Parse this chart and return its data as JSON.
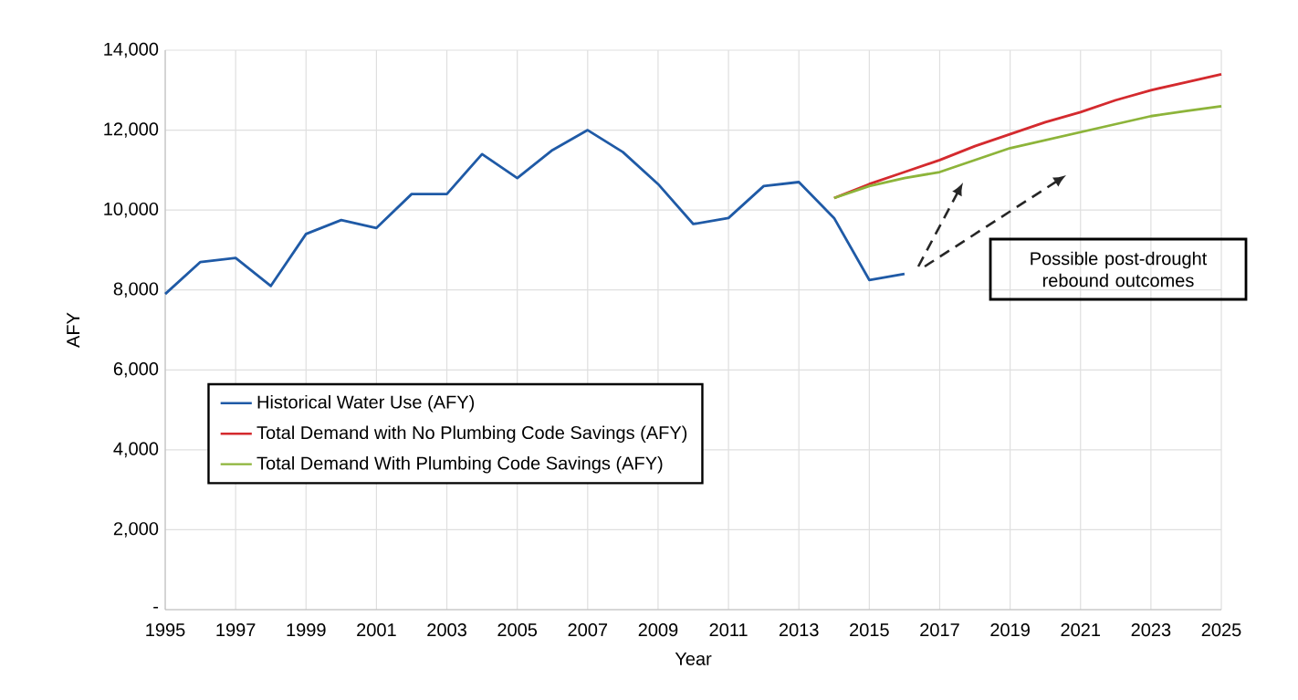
{
  "chart_data": {
    "type": "line",
    "xlabel": "Year",
    "ylabel": "AFY",
    "series": [
      {
        "name": "Historical Water Use (AFY)",
        "color": "#1f5aa6",
        "x": [
          1995,
          1996,
          1997,
          1998,
          1999,
          2000,
          2001,
          2002,
          2003,
          2004,
          2005,
          2006,
          2007,
          2008,
          2009,
          2010,
          2011,
          2012,
          2013,
          2014,
          2015,
          2016
        ],
        "values": [
          7900,
          8700,
          8800,
          8100,
          9400,
          9750,
          9550,
          10400,
          10400,
          11400,
          10800,
          11500,
          12000,
          11450,
          10650,
          9650,
          9800,
          10600,
          10700,
          9800,
          8250,
          8400
        ]
      },
      {
        "name": "Total Demand with No Plumbing Code Savings (AFY)",
        "color": "#d42a2e",
        "x": [
          2014,
          2015,
          2016,
          2017,
          2018,
          2019,
          2020,
          2021,
          2022,
          2023,
          2024,
          2025
        ],
        "values": [
          10300,
          10650,
          10950,
          11250,
          11600,
          11900,
          12200,
          12450,
          12750,
          13000,
          13200,
          13400
        ]
      },
      {
        "name": "Total Demand With Plumbing Code Savings (AFY)",
        "color": "#8db43a",
        "x": [
          2014,
          2015,
          2016,
          2017,
          2018,
          2019,
          2020,
          2021,
          2022,
          2023,
          2024,
          2025
        ],
        "values": [
          10300,
          10600,
          10800,
          10950,
          11250,
          11550,
          11750,
          11950,
          12150,
          12350,
          12480,
          12600
        ]
      }
    ],
    "xlim": [
      1995,
      2025
    ],
    "xticks": [
      1995,
      1997,
      1999,
      2001,
      2003,
      2005,
      2007,
      2009,
      2011,
      2013,
      2015,
      2017,
      2019,
      2021,
      2023,
      2025
    ],
    "ylim": [
      0,
      14000
    ],
    "yticks": [
      {
        "value": 0,
        "label": "-"
      },
      {
        "value": 2000,
        "label": "2,000"
      },
      {
        "value": 4000,
        "label": "4,000"
      },
      {
        "value": 6000,
        "label": "6,000"
      },
      {
        "value": 8000,
        "label": "8,000"
      },
      {
        "value": 10000,
        "label": "10,000"
      },
      {
        "value": 12000,
        "label": "12,000"
      },
      {
        "value": 14000,
        "label": "14,000"
      }
    ],
    "grid": true,
    "legend": "left",
    "annotations": [
      "Possible post-drought rebound outcomes"
    ]
  }
}
